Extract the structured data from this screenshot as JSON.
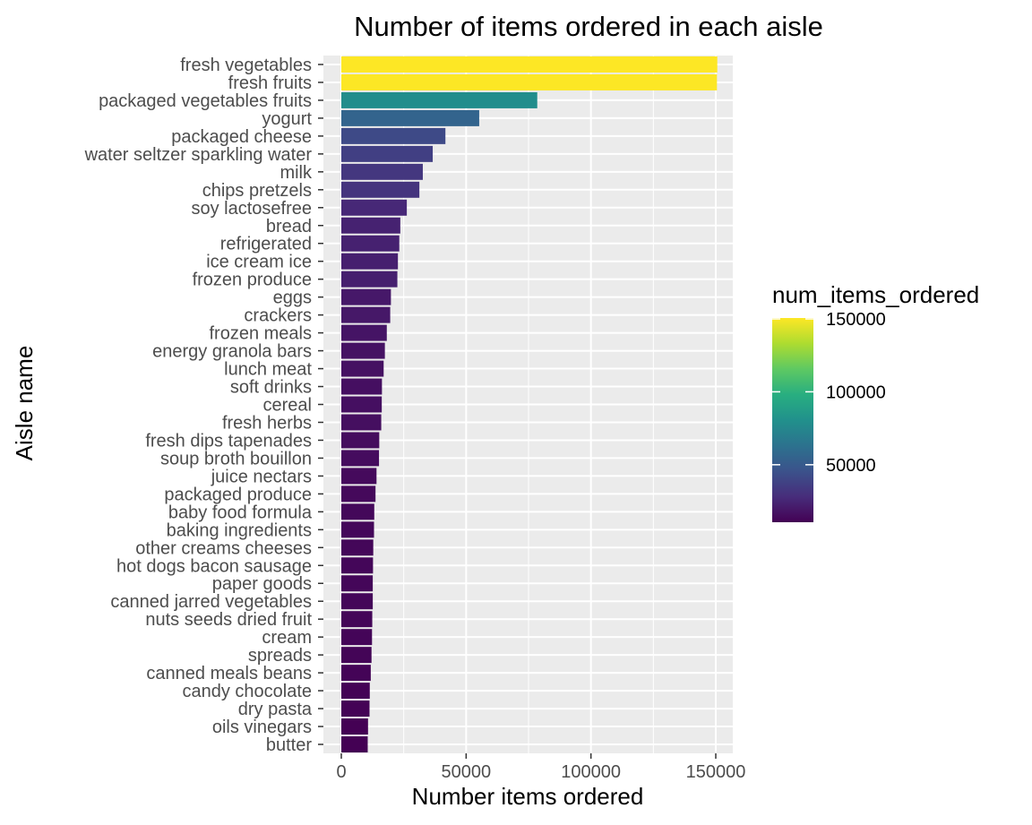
{
  "chart_data": {
    "type": "bar",
    "orientation": "horizontal",
    "title": "Number of items ordered in each aisle",
    "xlabel": "Number items ordered",
    "ylabel": "Aisle name",
    "xlim": [
      0,
      159000
    ],
    "x_ticks": [
      0,
      50000,
      100000,
      150000
    ],
    "x_tick_labels": [
      "0",
      "50000",
      "100000",
      "150000"
    ],
    "grid": true,
    "legend": {
      "title": "num_items_ordered",
      "position": "right",
      "type": "colorbar",
      "colormap": "viridis",
      "range": [
        10575,
        150609
      ],
      "ticks": [
        50000,
        100000,
        150000
      ],
      "tick_labels": [
        "50000",
        "100000",
        "150000"
      ]
    },
    "categories": [
      "fresh vegetables",
      "fresh fruits",
      "packaged vegetables fruits",
      "yogurt",
      "packaged cheese",
      "water seltzer sparkling water",
      "milk",
      "chips pretzels",
      "soy lactosefree",
      "bread",
      "refrigerated",
      "ice cream ice",
      "frozen produce",
      "eggs",
      "crackers",
      "frozen meals",
      "energy granola bars",
      "lunch meat",
      "soft drinks",
      "cereal",
      "fresh herbs",
      "fresh dips tapenades",
      "soup broth bouillon",
      "juice nectars",
      "packaged produce",
      "baby food formula",
      "baking ingredients",
      "other creams cheeses",
      "hot dogs bacon sausage",
      "paper goods",
      "canned jarred vegetables",
      "nuts seeds dried fruit",
      "cream",
      "spreads",
      "canned meals beans",
      "candy chocolate",
      "dry pasta",
      "oils vinegars",
      "butter"
    ],
    "values": [
      150609,
      150473,
      78493,
      55240,
      41699,
      36617,
      32644,
      31269,
      26240,
      23635,
      23228,
      22676,
      22453,
      19875,
      19592,
      18221,
      17449,
      16957,
      16279,
      16201,
      16000,
      15200,
      15100,
      14100,
      13700,
      13200,
      13100,
      12800,
      12700,
      12600,
      12600,
      12400,
      12300,
      12100,
      11800,
      11400,
      11300,
      10700,
      10575
    ]
  }
}
